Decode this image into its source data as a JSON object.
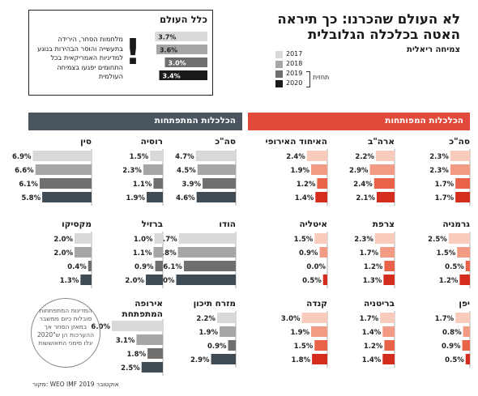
{
  "header": {
    "title_line1": "לא העולם שהכרנו: כך תיראה",
    "title_line2": "האטה בכלכלה הגלובלית",
    "subtitle": "צמיחה ריאלית"
  },
  "legend": {
    "items": [
      {
        "label": "2017",
        "color": "#d9d9d9"
      },
      {
        "label": "2018",
        "color": "#a6a6a6"
      },
      {
        "label": "2019",
        "color": "#6f6f6f"
      },
      {
        "label": "2020",
        "color": "#1a1a1a"
      }
    ],
    "forecast_label": "תחזית"
  },
  "world_box": {
    "title": "כלל העולם",
    "values": [
      "3.7%",
      "3.6%",
      "3.0%",
      "3.4%"
    ],
    "exclamation": "!",
    "note": "מלחמות הסחר, הירידה בתעשייה והוסר הבהירות בנוגע למדיניות האמריקאית בכל התחומים יפגעו בצמיחה העולמית"
  },
  "sections": {
    "developed": "הכלכלות המפותחות",
    "emerging": "הכלכלות המתפתחות"
  },
  "circle_note": "המדינות המתפתחות סובלות כיום ממשבר במאזן הסחר אך ההערכות הן ש\"2020 יגלו סימני התאוששות",
  "source": "מקור: WEO IMF אוקטובר 2019",
  "colors": {
    "developed": [
      "#f8cbbd",
      "#f29a83",
      "#e8634a",
      "#d42d1e"
    ],
    "emerging": [
      "#d9d9d9",
      "#a6a6a6",
      "#6f6f6f",
      "#3f4b55"
    ],
    "developed_header": "#e14a3b",
    "emerging_header": "#4a5560"
  },
  "chart_data": {
    "type": "bar",
    "series_years": [
      "2017",
      "2018",
      "2019",
      "2020"
    ],
    "world": {
      "name": "כלל העולם",
      "values": [
        3.7,
        3.6,
        3.0,
        3.4
      ]
    },
    "developed": [
      {
        "name": "סה\"כ",
        "values": [
          2.3,
          2.3,
          1.7,
          1.7
        ]
      },
      {
        "name": "ארה\"ב",
        "values": [
          2.2,
          2.9,
          2.4,
          2.1
        ]
      },
      {
        "name": "האיחוד האירופי",
        "values": [
          2.4,
          1.9,
          1.2,
          1.4
        ]
      },
      {
        "name": "גרמניה",
        "values": [
          2.5,
          1.5,
          0.5,
          1.2
        ]
      },
      {
        "name": "צרפת",
        "values": [
          2.3,
          1.7,
          1.2,
          1.3
        ]
      },
      {
        "name": "איטליה",
        "values": [
          1.5,
          0.9,
          0.0,
          0.5
        ]
      },
      {
        "name": "יפן",
        "values": [
          1.7,
          0.8,
          0.9,
          0.5
        ]
      },
      {
        "name": "בריטניה",
        "values": [
          1.7,
          1.4,
          1.2,
          1.4
        ]
      },
      {
        "name": "קנדה",
        "values": [
          3.0,
          1.9,
          1.5,
          1.8
        ]
      }
    ],
    "emerging": [
      {
        "name": "סה\"כ",
        "values": [
          4.7,
          4.5,
          3.9,
          4.6
        ]
      },
      {
        "name": "רוסיה",
        "values": [
          1.5,
          2.3,
          1.1,
          1.9
        ]
      },
      {
        "name": "סין",
        "values": [
          6.9,
          6.6,
          6.1,
          5.8
        ]
      },
      {
        "name": "הודו",
        "values": [
          6.7,
          6.8,
          6.1,
          7.0
        ]
      },
      {
        "name": "ברזיל",
        "values": [
          1.0,
          1.1,
          0.9,
          2.0
        ]
      },
      {
        "name": "מקסיקו",
        "values": [
          2.0,
          2.0,
          0.4,
          1.3
        ]
      },
      {
        "name": "מזרח תיכון",
        "values": [
          2.2,
          1.9,
          0.9,
          2.9
        ]
      },
      {
        "name": "אירופה המתפתחת",
        "values": [
          6.0,
          3.1,
          1.8,
          2.5
        ]
      }
    ]
  }
}
